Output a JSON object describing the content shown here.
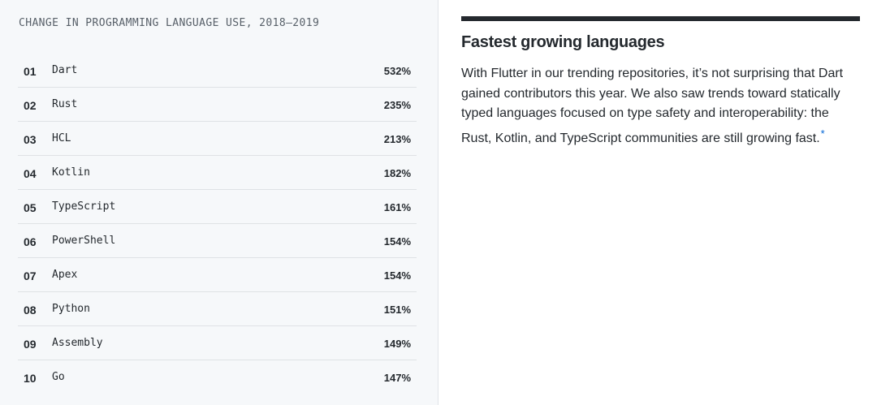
{
  "chart_data": {
    "type": "table",
    "title": "CHANGE IN PROGRAMMING LANGUAGE USE, 2018–2019",
    "columns": [
      "rank",
      "language",
      "change"
    ],
    "rows": [
      {
        "rank": "01",
        "language": "Dart",
        "change": "532%"
      },
      {
        "rank": "02",
        "language": "Rust",
        "change": "235%"
      },
      {
        "rank": "03",
        "language": "HCL",
        "change": "213%"
      },
      {
        "rank": "04",
        "language": "Kotlin",
        "change": "182%"
      },
      {
        "rank": "05",
        "language": "TypeScript",
        "change": "161%"
      },
      {
        "rank": "06",
        "language": "PowerShell",
        "change": "154%"
      },
      {
        "rank": "07",
        "language": "Apex",
        "change": "154%"
      },
      {
        "rank": "08",
        "language": "Python",
        "change": "151%"
      },
      {
        "rank": "09",
        "language": "Assembly",
        "change": "149%"
      },
      {
        "rank": "10",
        "language": "Go",
        "change": "147%"
      }
    ]
  },
  "article": {
    "heading": "Fastest growing languages",
    "body": "With Flutter in our trending repositories, it’s not surprising that Dart gained contributors this year. We also saw trends toward statically typed languages focused on type safety and interoperability: the Rust, Kotlin, and TypeScript communities are still growing fast.",
    "footnote_mark": "*"
  },
  "colors": {
    "text": "#24292e",
    "muted": "#586069",
    "panel_bg": "#f6f8fa",
    "divider": "#dfe2e5",
    "link": "#0366d6"
  }
}
